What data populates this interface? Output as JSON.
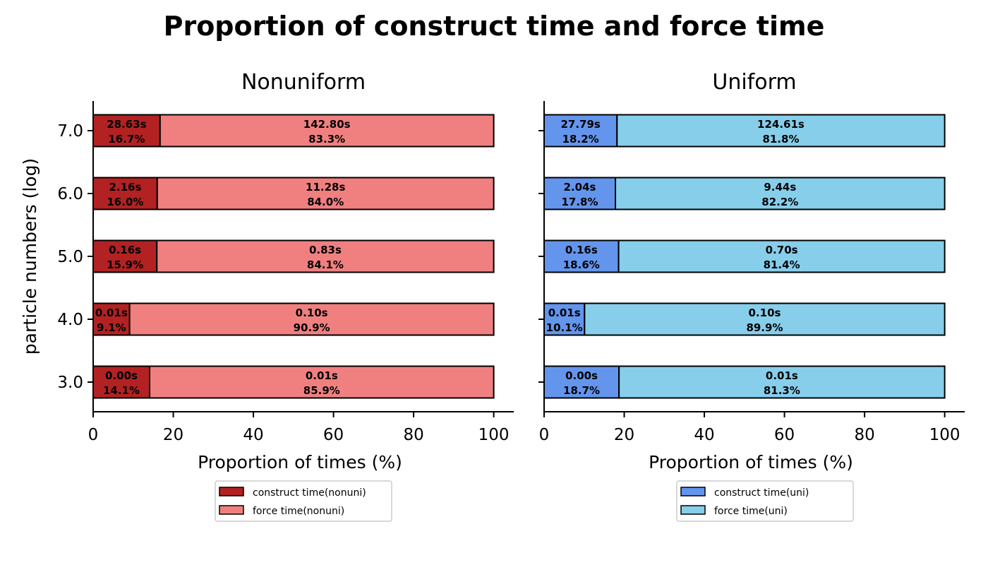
{
  "title": "Proportion of construct time and force time",
  "chart_data": [
    {
      "type": "bar",
      "orientation": "horizontal",
      "stacked": true,
      "title": "Nonuniform",
      "xlabel": "Proportion of times (%)",
      "ylabel": "particle numbers (log)",
      "xlim": [
        0,
        105
      ],
      "xticks": [
        0,
        20,
        40,
        60,
        80,
        100
      ],
      "categories": [
        "3.0",
        "4.0",
        "5.0",
        "6.0",
        "7.0"
      ],
      "series": [
        {
          "name": "construct time(nonuni)",
          "color": "#b22222",
          "values": [
            14.1,
            9.1,
            15.9,
            16.0,
            16.7
          ],
          "time_labels": [
            "0.00s",
            "0.01s",
            "0.16s",
            "2.16s",
            "28.63s"
          ],
          "pct_labels": [
            "14.1%",
            "9.1%",
            "15.9%",
            "16.0%",
            "16.7%"
          ]
        },
        {
          "name": "force time(nonuni)",
          "color": "#f08080",
          "values": [
            85.9,
            90.9,
            84.1,
            84.0,
            83.3
          ],
          "time_labels": [
            "0.01s",
            "0.10s",
            "0.83s",
            "11.28s",
            "142.80s"
          ],
          "pct_labels": [
            "85.9%",
            "90.9%",
            "84.1%",
            "84.0%",
            "83.3%"
          ]
        }
      ],
      "legend_position": "below"
    },
    {
      "type": "bar",
      "orientation": "horizontal",
      "stacked": true,
      "title": "Uniform",
      "xlabel": "Proportion of times (%)",
      "ylabel": "",
      "xlim": [
        0,
        105
      ],
      "xticks": [
        0,
        20,
        40,
        60,
        80,
        100
      ],
      "categories": [
        "3.0",
        "4.0",
        "5.0",
        "6.0",
        "7.0"
      ],
      "series": [
        {
          "name": "construct time(uni)",
          "color": "#6495ed",
          "values": [
            18.7,
            10.1,
            18.6,
            17.8,
            18.2
          ],
          "time_labels": [
            "0.00s",
            "0.01s",
            "0.16s",
            "2.04s",
            "27.79s"
          ],
          "pct_labels": [
            "18.7%",
            "10.1%",
            "18.6%",
            "17.8%",
            "18.2%"
          ]
        },
        {
          "name": "force time(uni)",
          "color": "#87ceeb",
          "values": [
            81.3,
            89.9,
            81.4,
            82.2,
            81.8
          ],
          "time_labels": [
            "0.01s",
            "0.10s",
            "0.70s",
            "9.44s",
            "124.61s"
          ],
          "pct_labels": [
            "81.3%",
            "89.9%",
            "81.4%",
            "82.2%",
            "81.8%"
          ]
        }
      ],
      "legend_position": "below"
    }
  ]
}
